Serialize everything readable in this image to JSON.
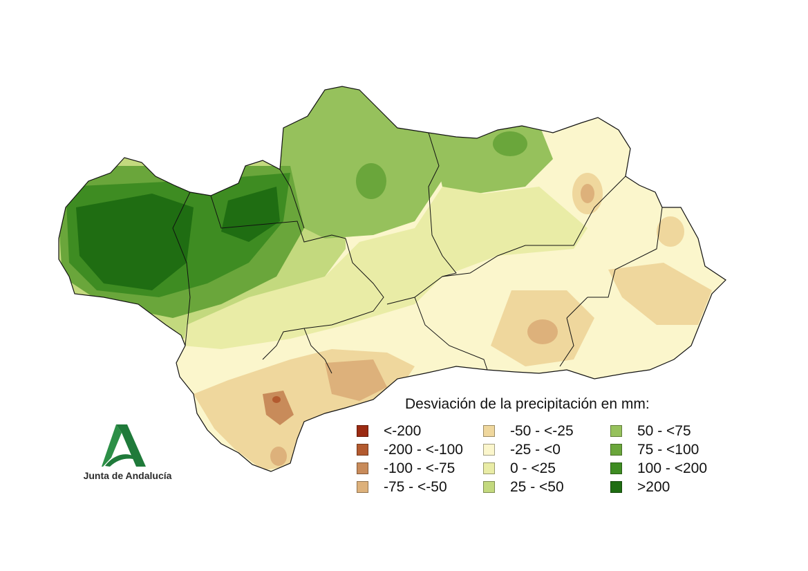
{
  "legend": {
    "title": "Desviación de la precipitación en mm:",
    "items": [
      {
        "label": "<-200",
        "color": "#9b2a12"
      },
      {
        "label": "-200 - <-100",
        "color": "#b35a2f"
      },
      {
        "label": "-100 - <-75",
        "color": "#c88b5a"
      },
      {
        "label": "-75 - <-50",
        "color": "#ddb17b"
      },
      {
        "label": "-50 - <-25",
        "color": "#efd79d"
      },
      {
        "label": "-25 - <0",
        "color": "#fbf6cc"
      },
      {
        "label": "0 - <25",
        "color": "#e9eca6"
      },
      {
        "label": "25 - <50",
        "color": "#c3d97e"
      },
      {
        "label": "50 - <75",
        "color": "#96c15c"
      },
      {
        "label": "75 - <100",
        "color": "#6aa63b"
      },
      {
        "label": "100 - <200",
        "color": "#3e8c22"
      },
      {
        "label": ">200",
        "color": "#1f6d12"
      }
    ]
  },
  "logo": {
    "text": "Junta de Andalucía",
    "color": "#1f7a3a"
  }
}
